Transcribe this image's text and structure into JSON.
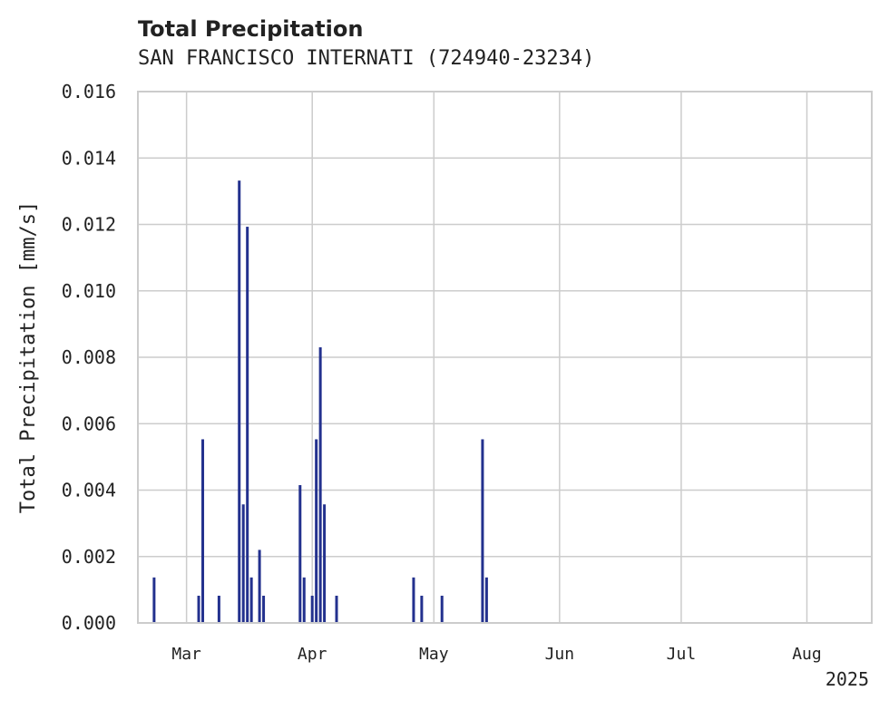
{
  "chart_data": {
    "type": "bar",
    "title": "Total Precipitation",
    "subtitle": "SAN FRANCISCO INTERNATI (724940-23234)",
    "xlabel": "",
    "ylabel": "Total Precipitation [mm/s]",
    "x_year_label": "2025",
    "x_ticks": [
      {
        "date": "2025-03-01",
        "label": "Mar"
      },
      {
        "date": "2025-04-01",
        "label": "Apr"
      },
      {
        "date": "2025-05-01",
        "label": "May"
      },
      {
        "date": "2025-06-01",
        "label": "Jun"
      },
      {
        "date": "2025-07-01",
        "label": "Jul"
      },
      {
        "date": "2025-08-01",
        "label": "Aug"
      }
    ],
    "y_ticks": [
      "0.000",
      "0.002",
      "0.004",
      "0.006",
      "0.008",
      "0.010",
      "0.012",
      "0.014",
      "0.016"
    ],
    "xlim": [
      "2025-02-17",
      "2025-08-17"
    ],
    "ylim": [
      0,
      0.016
    ],
    "grid": true,
    "bar_color": "#23318e",
    "x": [
      "2025-02-21",
      "2025-03-04",
      "2025-03-05",
      "2025-03-09",
      "2025-03-14",
      "2025-03-15",
      "2025-03-16",
      "2025-03-17",
      "2025-03-19",
      "2025-03-20",
      "2025-03-29",
      "2025-03-30",
      "2025-04-01",
      "2025-04-02",
      "2025-04-03",
      "2025-04-04",
      "2025-04-07",
      "2025-04-26",
      "2025-04-28",
      "2025-05-03",
      "2025-05-13",
      "2025-05-14"
    ],
    "values": [
      0.00137,
      0.00082,
      0.00553,
      0.00082,
      0.01332,
      0.00357,
      0.01193,
      0.00137,
      0.0022,
      0.00082,
      0.00415,
      0.00137,
      0.00082,
      0.00553,
      0.0083,
      0.00357,
      0.00082,
      0.00137,
      0.00082,
      0.00082,
      0.00553,
      0.00137
    ]
  }
}
